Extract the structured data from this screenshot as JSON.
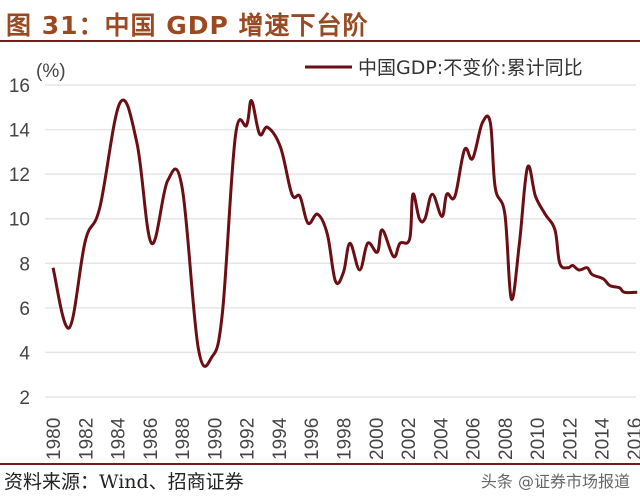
{
  "title": "图 31：中国 GDP 增速下台阶",
  "source": "资料来源：Wind、招商证券",
  "watermark": "头条 @证券市场报道",
  "chart_data": {
    "type": "line",
    "title": "",
    "ylabel": "(%)",
    "xlabel": "",
    "ylim": [
      2,
      16
    ],
    "yticks": [
      2,
      4,
      6,
      8,
      10,
      12,
      14,
      16
    ],
    "xlim": [
      1980,
      2016
    ],
    "xticks": [
      "1980",
      "1982",
      "1984",
      "1986",
      "1988",
      "1990",
      "1992",
      "1994",
      "1996",
      "1998",
      "2000",
      "2002",
      "2004",
      "2006",
      "2008",
      "2010",
      "2012",
      "2014",
      "2016"
    ],
    "grid": true,
    "legend_position": "top-right",
    "line_color": "#6b0f14",
    "series": [
      {
        "name": "中国GDP:不变价:累计同比",
        "points": [
          [
            1980.0,
            7.8
          ],
          [
            1981.0,
            5.1
          ],
          [
            1982.0,
            9.0
          ],
          [
            1982.9,
            10.5
          ],
          [
            1984.15,
            15.2
          ],
          [
            1985.2,
            13.4
          ],
          [
            1986.1,
            8.9
          ],
          [
            1987.1,
            11.7
          ],
          [
            1988.0,
            11.4
          ],
          [
            1989.0,
            4.2
          ],
          [
            1989.85,
            3.8
          ],
          [
            1990.5,
            5.8
          ],
          [
            1991.3,
            13.7
          ],
          [
            1992.0,
            14.2
          ],
          [
            1992.3,
            15.3
          ],
          [
            1992.8,
            13.8
          ],
          [
            1993.3,
            14.1
          ],
          [
            1994.1,
            13.2
          ],
          [
            1994.8,
            11.1
          ],
          [
            1995.3,
            11.0
          ],
          [
            1995.8,
            9.8
          ],
          [
            1996.4,
            10.2
          ],
          [
            1997.0,
            9.3
          ],
          [
            1997.5,
            7.2
          ],
          [
            1998.0,
            7.6
          ],
          [
            1998.4,
            8.9
          ],
          [
            1999.0,
            7.7
          ],
          [
            1999.5,
            8.9
          ],
          [
            2000.1,
            8.5
          ],
          [
            2000.4,
            9.5
          ],
          [
            2001.1,
            8.3
          ],
          [
            2001.5,
            8.9
          ],
          [
            2002.1,
            9.1
          ],
          [
            2002.3,
            11.1
          ],
          [
            2002.7,
            10.0
          ],
          [
            2003.05,
            10.0
          ],
          [
            2003.5,
            11.1
          ],
          [
            2004.1,
            10.1
          ],
          [
            2004.4,
            11.1
          ],
          [
            2004.9,
            11.0
          ],
          [
            2005.5,
            13.1
          ],
          [
            2006.0,
            12.7
          ],
          [
            2006.6,
            14.3
          ],
          [
            2007.1,
            14.3
          ],
          [
            2007.4,
            11.4
          ],
          [
            2008.0,
            10.2
          ],
          [
            2008.4,
            6.4
          ],
          [
            2008.9,
            8.9
          ],
          [
            2009.4,
            12.3
          ],
          [
            2009.9,
            11.0
          ],
          [
            2010.5,
            10.2
          ],
          [
            2011.1,
            9.5
          ],
          [
            2011.4,
            8.0
          ],
          [
            2011.9,
            7.8
          ],
          [
            2012.2,
            7.9
          ],
          [
            2012.6,
            7.7
          ],
          [
            2013.1,
            7.8
          ],
          [
            2013.4,
            7.5
          ],
          [
            2014.1,
            7.3
          ],
          [
            2014.5,
            7.0
          ],
          [
            2015.1,
            6.9
          ],
          [
            2015.4,
            6.7
          ],
          [
            2016.2,
            6.7
          ]
        ]
      }
    ]
  }
}
